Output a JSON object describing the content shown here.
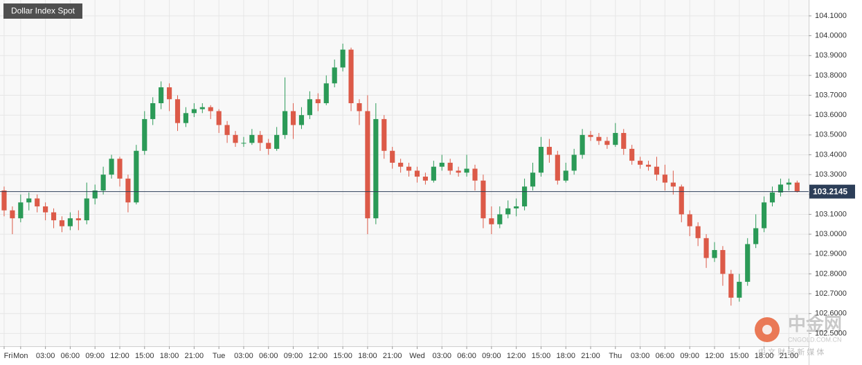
{
  "chart_data": {
    "type": "candlestick",
    "title": "Dollar Index Spot",
    "x": [
      -2,
      -1,
      0,
      1,
      2,
      3,
      4,
      5,
      6,
      7,
      8,
      9,
      10,
      11,
      12,
      13,
      14,
      15,
      16,
      17,
      18,
      19,
      20,
      21,
      22,
      23,
      24,
      25,
      26,
      27,
      28,
      29,
      30,
      31,
      32,
      33,
      34,
      35,
      36,
      37,
      38,
      39,
      40,
      41,
      42,
      43,
      44,
      45,
      46,
      47,
      48,
      49,
      50,
      51,
      52,
      53,
      54,
      55,
      56,
      57,
      58,
      59,
      60,
      61,
      62,
      63,
      64,
      65,
      66,
      67,
      68,
      69,
      70,
      71,
      72,
      73,
      74,
      75,
      76,
      77,
      78,
      79,
      80,
      81,
      82,
      83,
      84,
      85,
      86,
      87,
      88,
      89,
      90,
      91,
      92,
      93,
      94
    ],
    "open": [
      103.22,
      103.12,
      103.08,
      103.16,
      103.18,
      103.14,
      103.11,
      103.07,
      103.04,
      103.08,
      103.07,
      103.18,
      103.22,
      103.3,
      103.38,
      103.28,
      103.16,
      103.42,
      103.58,
      103.66,
      103.74,
      103.68,
      103.56,
      103.61,
      103.63,
      103.64,
      103.62,
      103.55,
      103.5,
      103.46,
      103.46,
      103.5,
      103.46,
      103.43,
      103.5,
      103.62,
      103.55,
      103.6,
      103.68,
      103.66,
      103.76,
      103.84,
      103.93,
      103.66,
      103.62,
      103.08,
      103.58,
      103.42,
      103.36,
      103.34,
      103.32,
      103.29,
      103.27,
      103.34,
      103.36,
      103.32,
      103.31,
      103.33,
      103.27,
      103.08,
      103.05,
      103.1,
      103.13,
      103.14,
      103.24,
      103.31,
      103.44,
      103.4,
      103.27,
      103.32,
      103.4,
      103.5,
      103.49,
      103.47,
      103.45,
      103.51,
      103.43,
      103.37,
      103.35,
      103.34,
      103.3,
      103.26,
      103.24,
      103.1,
      103.04,
      102.98,
      102.88,
      102.92,
      102.8,
      102.68,
      102.76,
      102.95,
      103.03,
      103.16,
      103.21,
      103.25,
      103.26
    ],
    "high": [
      103.24,
      103.14,
      103.2,
      103.21,
      103.2,
      103.16,
      103.13,
      103.09,
      103.11,
      103.12,
      103.26,
      103.25,
      103.34,
      103.4,
      103.39,
      103.3,
      103.45,
      103.62,
      103.69,
      103.77,
      103.76,
      103.7,
      103.64,
      103.66,
      103.66,
      103.65,
      103.63,
      103.57,
      103.52,
      103.49,
      103.53,
      103.52,
      103.48,
      103.54,
      103.79,
      103.66,
      103.64,
      103.72,
      103.71,
      103.8,
      103.88,
      103.96,
      103.94,
      103.68,
      103.7,
      103.66,
      103.6,
      103.44,
      103.38,
      103.36,
      103.34,
      103.31,
      103.37,
      103.4,
      103.38,
      103.34,
      103.4,
      103.35,
      103.3,
      103.14,
      103.14,
      103.17,
      103.18,
      103.28,
      103.36,
      103.49,
      103.48,
      103.42,
      103.36,
      103.43,
      103.53,
      103.52,
      103.51,
      103.49,
      103.56,
      103.53,
      103.45,
      103.39,
      103.37,
      103.39,
      103.35,
      103.32,
      103.25,
      103.12,
      103.06,
      103.0,
      102.96,
      102.94,
      102.82,
      102.8,
      102.98,
      103.1,
      103.19,
      103.24,
      103.28,
      103.28,
      103.27
    ],
    "low": [
      103.09,
      103.0,
      103.06,
      103.12,
      103.11,
      103.07,
      103.03,
      103.01,
      103.02,
      103.02,
      103.05,
      103.15,
      103.2,
      103.28,
      103.24,
      103.11,
      103.15,
      103.4,
      103.55,
      103.63,
      103.62,
      103.52,
      103.54,
      103.59,
      103.61,
      103.58,
      103.51,
      103.46,
      103.44,
      103.44,
      103.45,
      103.42,
      103.4,
      103.42,
      103.48,
      103.48,
      103.53,
      103.58,
      103.62,
      103.65,
      103.74,
      103.82,
      103.62,
      103.55,
      103.0,
      103.05,
      103.38,
      103.33,
      103.31,
      103.29,
      103.26,
      103.25,
      103.26,
      103.32,
      103.3,
      103.29,
      103.29,
      103.22,
      103.03,
      103.0,
      103.03,
      103.08,
      103.09,
      103.12,
      103.22,
      103.29,
      103.36,
      103.25,
      103.26,
      103.3,
      103.38,
      103.47,
      103.45,
      103.43,
      103.44,
      103.4,
      103.35,
      103.33,
      103.32,
      103.27,
      103.22,
      103.2,
      103.06,
      102.99,
      102.94,
      102.83,
      102.86,
      102.74,
      102.64,
      102.66,
      102.74,
      102.93,
      103.01,
      103.14,
      103.19,
      103.22,
      103.21
    ],
    "close": [
      103.12,
      103.08,
      103.16,
      103.18,
      103.14,
      103.11,
      103.07,
      103.04,
      103.08,
      103.07,
      103.18,
      103.22,
      103.3,
      103.38,
      103.28,
      103.16,
      103.42,
      103.58,
      103.66,
      103.74,
      103.68,
      103.56,
      103.61,
      103.63,
      103.64,
      103.62,
      103.55,
      103.5,
      103.46,
      103.46,
      103.5,
      103.46,
      103.43,
      103.5,
      103.62,
      103.55,
      103.6,
      103.68,
      103.66,
      103.76,
      103.84,
      103.93,
      103.66,
      103.62,
      103.08,
      103.58,
      103.42,
      103.36,
      103.34,
      103.32,
      103.29,
      103.27,
      103.34,
      103.36,
      103.32,
      103.31,
      103.33,
      103.27,
      103.08,
      103.05,
      103.1,
      103.13,
      103.14,
      103.24,
      103.31,
      103.44,
      103.4,
      103.27,
      103.32,
      103.4,
      103.5,
      103.49,
      103.47,
      103.45,
      103.51,
      103.43,
      103.37,
      103.35,
      103.34,
      103.3,
      103.26,
      103.24,
      103.1,
      103.04,
      102.98,
      102.88,
      102.92,
      102.8,
      102.68,
      102.76,
      102.95,
      103.03,
      103.16,
      103.21,
      103.25,
      103.26,
      103.2145
    ],
    "up_color": "#2b9a57",
    "down_color": "#dc5a48",
    "xlim": [
      -2.5,
      95.4
    ],
    "xticks": [
      {
        "value": -2,
        "label": "Fri"
      },
      {
        "value": 0,
        "label": "Mon"
      },
      {
        "value": 3,
        "label": "03:00"
      },
      {
        "value": 6,
        "label": "06:00"
      },
      {
        "value": 9,
        "label": "09:00"
      },
      {
        "value": 12,
        "label": "12:00"
      },
      {
        "value": 15,
        "label": "15:00"
      },
      {
        "value": 18,
        "label": "18:00"
      },
      {
        "value": 21,
        "label": "21:00"
      },
      {
        "value": 24,
        "label": "Tue"
      },
      {
        "value": 27,
        "label": "03:00"
      },
      {
        "value": 30,
        "label": "06:00"
      },
      {
        "value": 33,
        "label": "09:00"
      },
      {
        "value": 36,
        "label": "12:00"
      },
      {
        "value": 39,
        "label": "15:00"
      },
      {
        "value": 42,
        "label": "18:00"
      },
      {
        "value": 45,
        "label": "21:00"
      },
      {
        "value": 48,
        "label": "Wed"
      },
      {
        "value": 51,
        "label": "03:00"
      },
      {
        "value": 54,
        "label": "06:00"
      },
      {
        "value": 57,
        "label": "09:00"
      },
      {
        "value": 60,
        "label": "12:00"
      },
      {
        "value": 63,
        "label": "15:00"
      },
      {
        "value": 66,
        "label": "18:00"
      },
      {
        "value": 69,
        "label": "21:00"
      },
      {
        "value": 72,
        "label": "Thu"
      },
      {
        "value": 75,
        "label": "03:00"
      },
      {
        "value": 78,
        "label": "06:00"
      },
      {
        "value": 81,
        "label": "09:00"
      },
      {
        "value": 84,
        "label": "12:00"
      },
      {
        "value": 87,
        "label": "15:00"
      },
      {
        "value": 90,
        "label": "18:00"
      },
      {
        "value": 93,
        "label": "21:00"
      }
    ],
    "ylim": [
      102.435,
      104.18
    ],
    "yticks": [
      {
        "value": 104.1,
        "label": "104.1000"
      },
      {
        "value": 104.0,
        "label": "104.0000"
      },
      {
        "value": 103.9,
        "label": "103.9000"
      },
      {
        "value": 103.8,
        "label": "103.8000"
      },
      {
        "value": 103.7,
        "label": "103.7000"
      },
      {
        "value": 103.6,
        "label": "103.6000"
      },
      {
        "value": 103.5,
        "label": "103.5000"
      },
      {
        "value": 103.4,
        "label": "103.4000"
      },
      {
        "value": 103.3,
        "label": "103.3000"
      },
      {
        "value": 103.2,
        "label": "103.2000"
      },
      {
        "value": 103.1,
        "label": "103.1000"
      },
      {
        "value": 103.0,
        "label": "103.0000"
      },
      {
        "value": 102.9,
        "label": "102.9000"
      },
      {
        "value": 102.8,
        "label": "102.8000"
      },
      {
        "value": 102.7,
        "label": "102.7000"
      },
      {
        "value": 102.6,
        "label": "102.6000"
      },
      {
        "value": 102.5,
        "label": "102.5000"
      }
    ],
    "last_price": 103.2145,
    "grid": true
  },
  "watermark": {
    "logo": "中金网",
    "site": "CNGOLD.COM.CN",
    "slogan": "中 文 财 经 新 媒 体"
  }
}
